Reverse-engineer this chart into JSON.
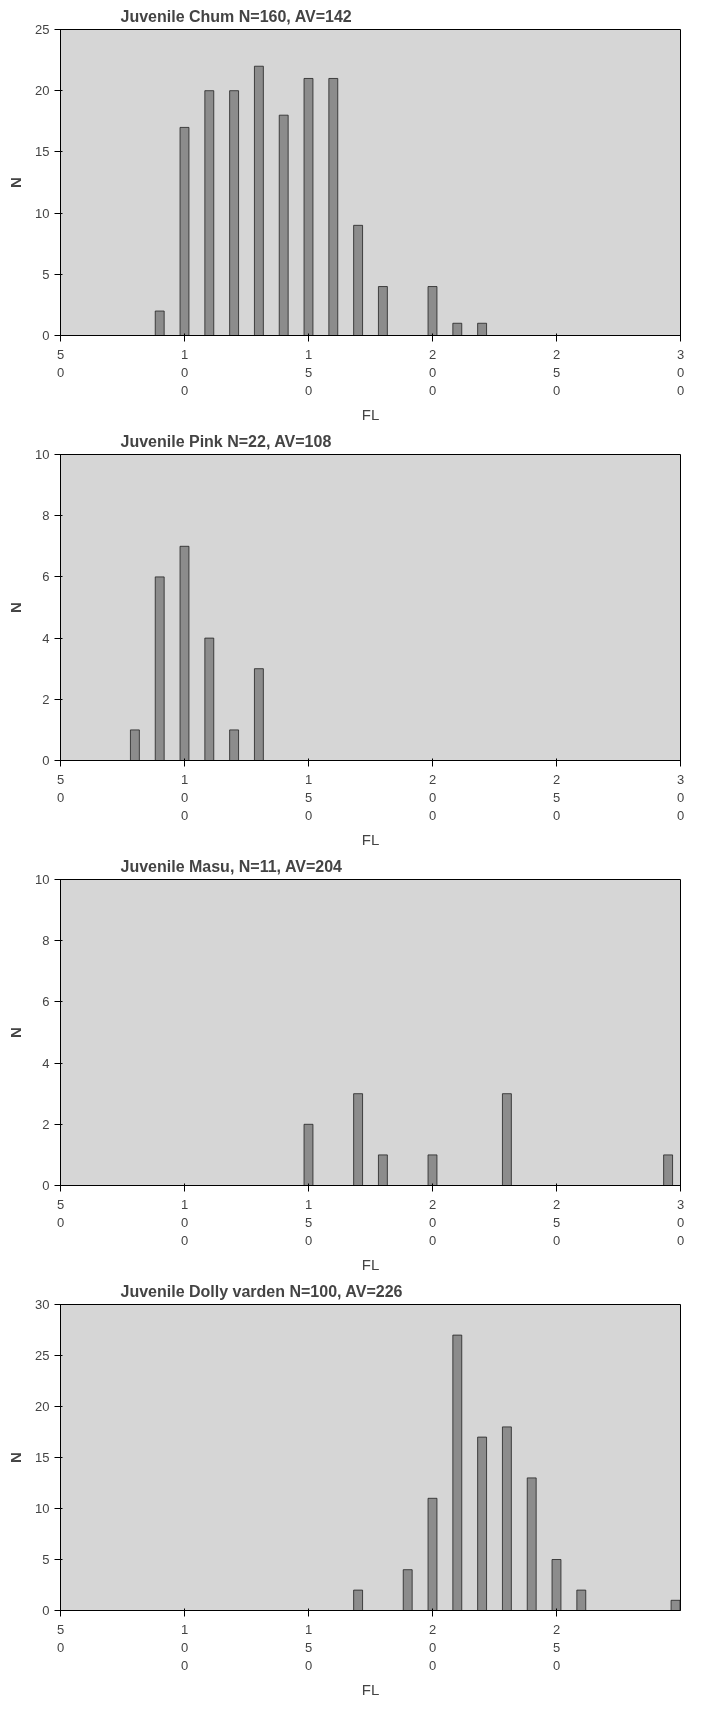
{
  "chart_data": [
    {
      "type": "bar",
      "title": "Juvenile Chum N=160, AV=142",
      "xlabel": "FL",
      "ylabel": "N",
      "color": "#8c8c8c",
      "x": [
        90,
        100,
        110,
        120,
        130,
        140,
        150,
        160,
        170,
        180,
        200,
        210,
        220
      ],
      "values": [
        2,
        17,
        20,
        20,
        22,
        18,
        21,
        21,
        9,
        4,
        4,
        1,
        1
      ],
      "xlim": [
        50,
        300
      ],
      "xticks": [
        50,
        100,
        150,
        200,
        250,
        300
      ],
      "ylim": [
        0,
        25
      ],
      "yticks": [
        0,
        5,
        10,
        15,
        20,
        25
      ],
      "grid": false
    },
    {
      "type": "bar",
      "title": "Juvenile Pink  N=22, AV=108",
      "xlabel": "FL",
      "ylabel": "N",
      "color": "#8c8c8c",
      "x": [
        80,
        90,
        100,
        110,
        120,
        130
      ],
      "values": [
        1,
        6,
        7,
        4,
        1,
        3
      ],
      "xlim": [
        50,
        300
      ],
      "xticks": [
        50,
        100,
        150,
        200,
        250,
        300
      ],
      "ylim": [
        0,
        10
      ],
      "yticks": [
        0,
        2,
        4,
        6,
        8,
        10
      ],
      "grid": false
    },
    {
      "type": "bar",
      "title": "Juvenile Masu, N=11, AV=204",
      "xlabel": "FL",
      "ylabel": "N",
      "color": "#8c8c8c",
      "x": [
        150,
        170,
        180,
        200,
        230,
        295
      ],
      "values": [
        2,
        3,
        1,
        1,
        3,
        1
      ],
      "xlim": [
        50,
        300
      ],
      "xticks": [
        50,
        100,
        150,
        200,
        250,
        300
      ],
      "ylim": [
        0,
        10
      ],
      "yticks": [
        0,
        2,
        4,
        6,
        8,
        10
      ],
      "grid": false
    },
    {
      "type": "bar",
      "title": "Juvenile Dolly varden N=100, AV=226",
      "xlabel": "FL",
      "ylabel": "N",
      "color": "#8c8c8c",
      "x": [
        170,
        190,
        200,
        210,
        220,
        230,
        240,
        250,
        260,
        298
      ],
      "values": [
        2,
        4,
        11,
        27,
        17,
        18,
        13,
        5,
        2,
        1
      ],
      "xlim": [
        50,
        300
      ],
      "xticks": [
        50,
        100,
        150,
        200,
        250
      ],
      "ylim": [
        0,
        30
      ],
      "yticks": [
        0,
        5,
        10,
        15,
        20,
        25,
        30
      ],
      "grid": false
    }
  ]
}
